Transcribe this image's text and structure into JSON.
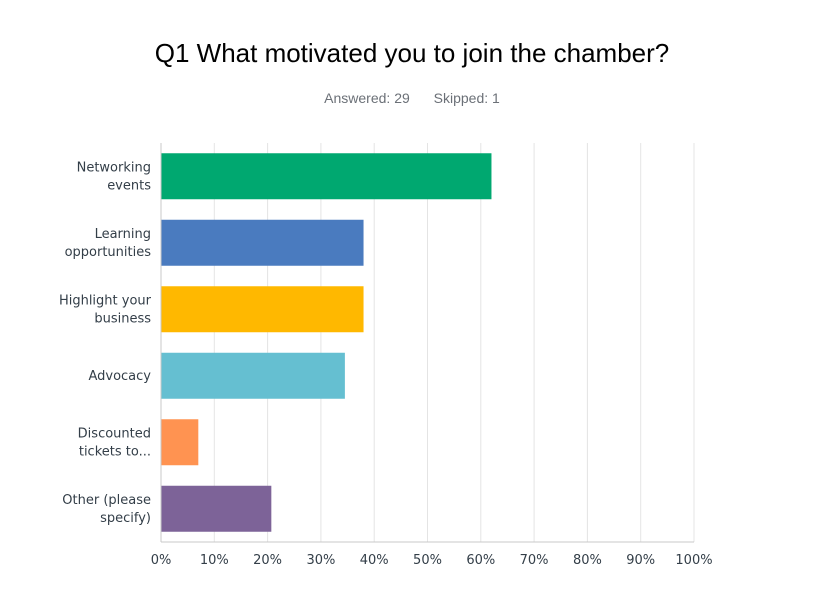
{
  "header": {
    "title": "Q1 What motivated you to join the chamber?",
    "answered_label": "Answered: 29",
    "skipped_label": "Skipped: 1"
  },
  "chart_data": {
    "type": "bar",
    "orientation": "horizontal",
    "categories": [
      [
        "Networking",
        "events"
      ],
      [
        "Learning",
        "opportunities"
      ],
      [
        "Highlight your",
        "business"
      ],
      [
        "Advocacy"
      ],
      [
        "Discounted",
        "tickets to..."
      ],
      [
        "Other (please",
        "specify)"
      ]
    ],
    "values": [
      62,
      38,
      38,
      34.5,
      7,
      20.7
    ],
    "colors": [
      "#00a870",
      "#4a7bbf",
      "#ffb800",
      "#65bfd1",
      "#ff9351",
      "#7d6398"
    ],
    "xlim": [
      0,
      100
    ],
    "xticks": [
      "0%",
      "10%",
      "20%",
      "30%",
      "40%",
      "50%",
      "60%",
      "70%",
      "80%",
      "90%",
      "100%"
    ],
    "grid": true,
    "legend": "none"
  }
}
